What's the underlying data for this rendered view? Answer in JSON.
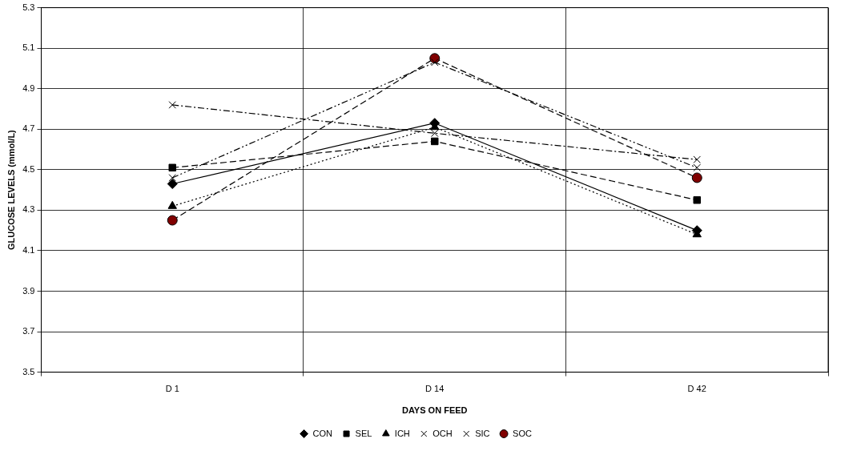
{
  "chart_data": {
    "type": "line",
    "xlabel": "DAYS ON FEED",
    "ylabel": "GLUCOSE LEVELS (mmol/L)",
    "categories": [
      "D 1",
      "D 14",
      "D 42"
    ],
    "ylim": [
      3.5,
      5.3
    ],
    "yticks": [
      3.5,
      3.7,
      3.9,
      4.1,
      4.3,
      4.5,
      4.7,
      4.9,
      5.1,
      5.3
    ],
    "grid": true,
    "legend": "bottom",
    "series": [
      {
        "name": "CON",
        "color": "#000000",
        "marker": "diamond",
        "line_style": "solid",
        "values": [
          4.43,
          4.73,
          4.2
        ]
      },
      {
        "name": "SEL",
        "color": "#000000",
        "marker": "square",
        "line_style": "dashed",
        "values": [
          4.51,
          4.64,
          4.35
        ]
      },
      {
        "name": "ICH",
        "color": "#000000",
        "marker": "triangle",
        "line_style": "dotted",
        "values": [
          4.32,
          4.71,
          4.18
        ]
      },
      {
        "name": "OCH",
        "color": "#000000",
        "marker": "cross",
        "line_style": "dashdot",
        "values": [
          4.82,
          4.68,
          4.55
        ]
      },
      {
        "name": "SIC",
        "color": "#000000",
        "marker": "cross",
        "line_style": "dashdotdot",
        "values": [
          4.46,
          5.03,
          4.51
        ]
      },
      {
        "name": "SOC",
        "color": "#800000",
        "marker": "circle",
        "line_style": "dashed",
        "values": [
          4.25,
          5.05,
          4.46
        ]
      }
    ]
  }
}
